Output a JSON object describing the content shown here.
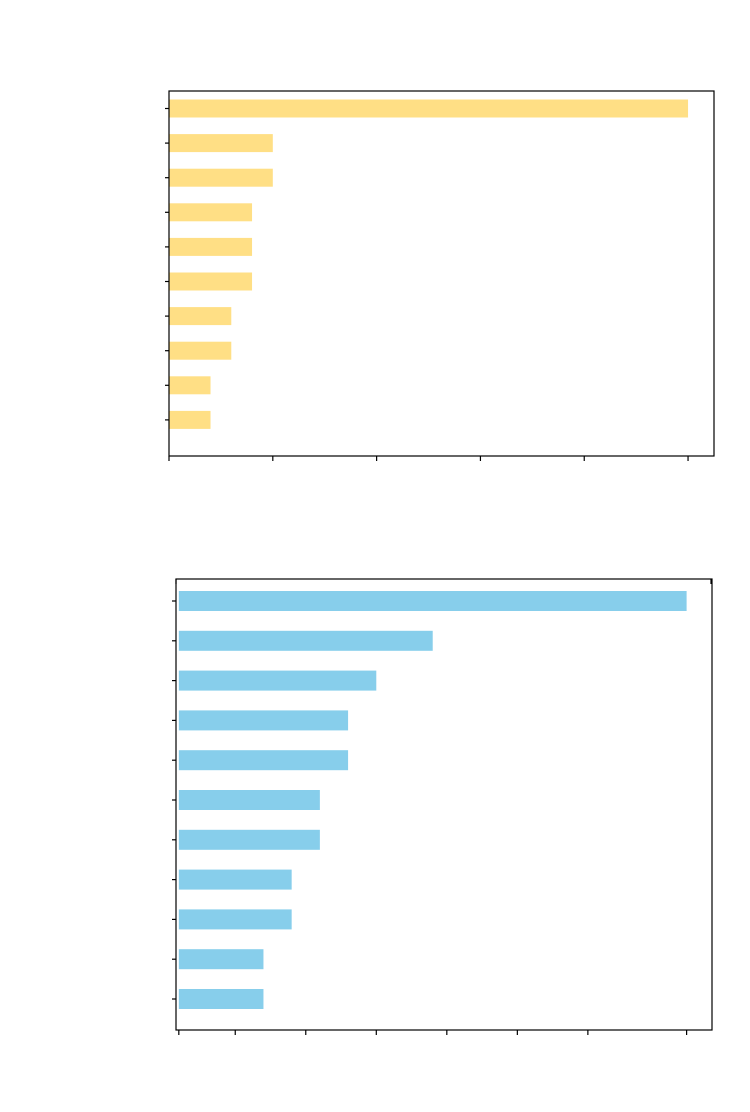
{
  "chart_data": [
    {
      "type": "bar",
      "orientation": "horizontal",
      "title": "",
      "xlabel": "",
      "ylabel": "",
      "categories": [
        "",
        "",
        "",
        "",
        "",
        "",
        "",
        "",
        "",
        ""
      ],
      "values": [
        25,
        5,
        5,
        4,
        4,
        4,
        3,
        3,
        2,
        2
      ],
      "xlim": [
        0,
        26.25
      ],
      "x_ticks": [
        0,
        5,
        10,
        15,
        20,
        25
      ],
      "grid": false,
      "legend": "none",
      "color": "#FFDF85"
    },
    {
      "type": "bar",
      "orientation": "horizontal",
      "title": "",
      "xlabel": "",
      "ylabel": "",
      "categories": [
        "",
        "",
        "",
        "",
        "",
        "",
        "",
        "",
        "",
        "",
        ""
      ],
      "values": [
        18,
        9,
        7,
        6,
        6,
        5,
        5,
        4,
        4,
        3,
        3
      ],
      "xlim": [
        -0.1,
        18.9
      ],
      "x_ticks": [
        0,
        2,
        4.5,
        7,
        9.5,
        12,
        14.5,
        18
      ],
      "grid": false,
      "legend": "none",
      "color": "#87CEEB"
    }
  ]
}
